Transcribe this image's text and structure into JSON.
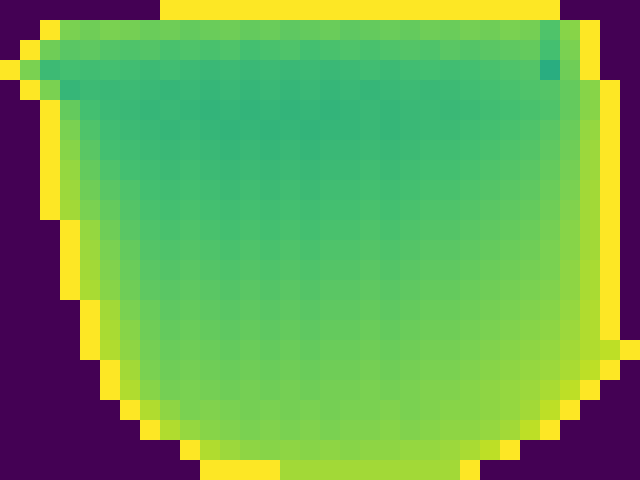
{
  "chart_data": {
    "type": "heatmap",
    "tick_labels": false,
    "color_range": [
      0,
      1
    ],
    "cells": [
      [
        0,
        0,
        0,
        0,
        0,
        0,
        0,
        0,
        1,
        1,
        1,
        1,
        1,
        1,
        1,
        1,
        1,
        1,
        1,
        1,
        1,
        1,
        1,
        1,
        1,
        1,
        1,
        1,
        0,
        0,
        0,
        0
      ],
      [
        0,
        0,
        1,
        0.8,
        0.78,
        0.8,
        0.79,
        0.77,
        0.78,
        0.76,
        0.77,
        0.78,
        0.76,
        0.77,
        0.75,
        0.76,
        0.77,
        0.75,
        0.76,
        0.77,
        0.76,
        0.78,
        0.77,
        0.79,
        0.78,
        0.8,
        0.79,
        0.72,
        0.82,
        1,
        0,
        0
      ],
      [
        0,
        1,
        0.78,
        0.74,
        0.75,
        0.73,
        0.72,
        0.73,
        0.71,
        0.72,
        0.71,
        0.72,
        0.7,
        0.71,
        0.72,
        0.7,
        0.71,
        0.72,
        0.71,
        0.72,
        0.73,
        0.72,
        0.74,
        0.73,
        0.74,
        0.75,
        0.76,
        0.7,
        0.8,
        1,
        0,
        0
      ],
      [
        1,
        0.8,
        0.68,
        0.7,
        0.69,
        0.7,
        0.69,
        0.68,
        0.69,
        0.68,
        0.67,
        0.68,
        0.67,
        0.68,
        0.67,
        0.68,
        0.67,
        0.68,
        0.69,
        0.68,
        0.69,
        0.7,
        0.69,
        0.7,
        0.71,
        0.72,
        0.73,
        0.62,
        0.78,
        1,
        0,
        0
      ],
      [
        0,
        1,
        0.8,
        0.66,
        0.68,
        0.67,
        0.68,
        0.67,
        0.66,
        0.67,
        0.66,
        0.67,
        0.66,
        0.67,
        0.66,
        0.67,
        0.66,
        0.67,
        0.66,
        0.67,
        0.68,
        0.67,
        0.68,
        0.69,
        0.7,
        0.71,
        0.72,
        0.73,
        0.76,
        0.82,
        1,
        0
      ],
      [
        0,
        0,
        1,
        0.76,
        0.7,
        0.68,
        0.67,
        0.66,
        0.67,
        0.66,
        0.65,
        0.66,
        0.65,
        0.66,
        0.65,
        0.66,
        0.65,
        0.66,
        0.67,
        0.66,
        0.67,
        0.68,
        0.67,
        0.68,
        0.69,
        0.7,
        0.71,
        0.72,
        0.76,
        0.82,
        1,
        0
      ],
      [
        0,
        0,
        1,
        0.8,
        0.72,
        0.69,
        0.68,
        0.67,
        0.66,
        0.67,
        0.66,
        0.65,
        0.66,
        0.65,
        0.66,
        0.65,
        0.66,
        0.66,
        0.67,
        0.66,
        0.67,
        0.68,
        0.68,
        0.69,
        0.7,
        0.71,
        0.72,
        0.74,
        0.77,
        0.84,
        1,
        0
      ],
      [
        0,
        0,
        1,
        0.82,
        0.74,
        0.7,
        0.69,
        0.68,
        0.67,
        0.68,
        0.67,
        0.66,
        0.67,
        0.66,
        0.67,
        0.66,
        0.67,
        0.67,
        0.68,
        0.67,
        0.68,
        0.69,
        0.69,
        0.7,
        0.71,
        0.72,
        0.73,
        0.75,
        0.78,
        0.85,
        1,
        0
      ],
      [
        0,
        0,
        1,
        0.84,
        0.76,
        0.72,
        0.7,
        0.69,
        0.68,
        0.69,
        0.68,
        0.67,
        0.68,
        0.67,
        0.68,
        0.67,
        0.68,
        0.68,
        0.69,
        0.68,
        0.69,
        0.7,
        0.7,
        0.71,
        0.72,
        0.73,
        0.74,
        0.76,
        0.79,
        0.85,
        1,
        0
      ],
      [
        0,
        0,
        1,
        0.85,
        0.78,
        0.74,
        0.72,
        0.7,
        0.69,
        0.7,
        0.69,
        0.68,
        0.69,
        0.68,
        0.69,
        0.68,
        0.69,
        0.69,
        0.7,
        0.69,
        0.7,
        0.71,
        0.71,
        0.72,
        0.73,
        0.74,
        0.75,
        0.77,
        0.8,
        0.86,
        1,
        0
      ],
      [
        0,
        0,
        1,
        0.86,
        0.8,
        0.76,
        0.73,
        0.71,
        0.7,
        0.71,
        0.7,
        0.69,
        0.7,
        0.69,
        0.7,
        0.69,
        0.7,
        0.7,
        0.71,
        0.7,
        0.71,
        0.72,
        0.72,
        0.73,
        0.74,
        0.75,
        0.76,
        0.78,
        0.81,
        0.86,
        1,
        0
      ],
      [
        0,
        0,
        0,
        1,
        0.84,
        0.78,
        0.74,
        0.72,
        0.71,
        0.72,
        0.71,
        0.7,
        0.71,
        0.7,
        0.71,
        0.7,
        0.71,
        0.71,
        0.72,
        0.71,
        0.72,
        0.73,
        0.73,
        0.74,
        0.75,
        0.76,
        0.77,
        0.79,
        0.82,
        0.86,
        1,
        0
      ],
      [
        0,
        0,
        0,
        1,
        0.85,
        0.8,
        0.76,
        0.73,
        0.72,
        0.73,
        0.72,
        0.71,
        0.72,
        0.71,
        0.72,
        0.71,
        0.72,
        0.72,
        0.73,
        0.72,
        0.73,
        0.74,
        0.74,
        0.75,
        0.76,
        0.77,
        0.78,
        0.8,
        0.82,
        0.86,
        1,
        0
      ],
      [
        0,
        0,
        0,
        1,
        0.86,
        0.81,
        0.77,
        0.74,
        0.73,
        0.74,
        0.73,
        0.72,
        0.73,
        0.72,
        0.73,
        0.72,
        0.73,
        0.73,
        0.74,
        0.73,
        0.74,
        0.75,
        0.75,
        0.76,
        0.77,
        0.78,
        0.79,
        0.8,
        0.83,
        0.87,
        1,
        0
      ],
      [
        0,
        0,
        0,
        1,
        0.87,
        0.82,
        0.78,
        0.75,
        0.74,
        0.75,
        0.74,
        0.73,
        0.74,
        0.73,
        0.74,
        0.73,
        0.74,
        0.74,
        0.75,
        0.74,
        0.75,
        0.76,
        0.76,
        0.77,
        0.78,
        0.79,
        0.8,
        0.81,
        0.83,
        0.87,
        1,
        0
      ],
      [
        0,
        0,
        0,
        0,
        1,
        0.86,
        0.8,
        0.77,
        0.75,
        0.76,
        0.75,
        0.74,
        0.75,
        0.74,
        0.75,
        0.74,
        0.75,
        0.75,
        0.76,
        0.75,
        0.76,
        0.77,
        0.77,
        0.78,
        0.79,
        0.8,
        0.81,
        0.82,
        0.84,
        0.88,
        1,
        0
      ],
      [
        0,
        0,
        0,
        0,
        1,
        0.87,
        0.82,
        0.78,
        0.76,
        0.77,
        0.76,
        0.75,
        0.76,
        0.75,
        0.76,
        0.75,
        0.76,
        0.76,
        0.77,
        0.76,
        0.77,
        0.78,
        0.78,
        0.79,
        0.8,
        0.81,
        0.82,
        0.83,
        0.85,
        0.88,
        1,
        0
      ],
      [
        0,
        0,
        0,
        0,
        1,
        0.88,
        0.83,
        0.79,
        0.77,
        0.78,
        0.77,
        0.76,
        0.77,
        0.76,
        0.77,
        0.76,
        0.77,
        0.77,
        0.78,
        0.77,
        0.78,
        0.79,
        0.79,
        0.8,
        0.81,
        0.82,
        0.83,
        0.84,
        0.86,
        0.88,
        0.9,
        1
      ],
      [
        0,
        0,
        0,
        0,
        0,
        1,
        0.86,
        0.8,
        0.78,
        0.79,
        0.78,
        0.77,
        0.78,
        0.77,
        0.78,
        0.77,
        0.78,
        0.78,
        0.79,
        0.78,
        0.79,
        0.8,
        0.8,
        0.81,
        0.82,
        0.83,
        0.84,
        0.85,
        0.87,
        0.9,
        1,
        0
      ],
      [
        0,
        0,
        0,
        0,
        0,
        1,
        0.88,
        0.82,
        0.79,
        0.8,
        0.79,
        0.78,
        0.79,
        0.78,
        0.79,
        0.78,
        0.79,
        0.79,
        0.8,
        0.79,
        0.8,
        0.81,
        0.81,
        0.82,
        0.83,
        0.84,
        0.85,
        0.87,
        0.9,
        1,
        0,
        0
      ],
      [
        0,
        0,
        0,
        0,
        0,
        0,
        1,
        0.88,
        0.83,
        0.8,
        0.81,
        0.8,
        0.79,
        0.8,
        0.79,
        0.8,
        0.79,
        0.8,
        0.8,
        0.81,
        0.8,
        0.81,
        0.82,
        0.82,
        0.83,
        0.84,
        0.86,
        0.9,
        1,
        0,
        0,
        0
      ],
      [
        0,
        0,
        0,
        0,
        0,
        0,
        0,
        1,
        0.88,
        0.84,
        0.82,
        0.81,
        0.8,
        0.81,
        0.8,
        0.81,
        0.8,
        0.81,
        0.81,
        0.82,
        0.81,
        0.82,
        0.83,
        0.83,
        0.84,
        0.86,
        0.9,
        1,
        0,
        0,
        0,
        0
      ],
      [
        0,
        0,
        0,
        0,
        0,
        0,
        0,
        0,
        0,
        1,
        0.88,
        0.85,
        0.83,
        0.82,
        0.83,
        0.82,
        0.83,
        0.82,
        0.83,
        0.83,
        0.84,
        0.84,
        0.85,
        0.87,
        0.9,
        1,
        0,
        0,
        0,
        0,
        0,
        0
      ],
      [
        0,
        0,
        0,
        0,
        0,
        0,
        0,
        0,
        0,
        0,
        1,
        1,
        1,
        1,
        0.86,
        0.86,
        0.86,
        0.86,
        0.86,
        0.86,
        0.86,
        0.86,
        0.86,
        1,
        0,
        0,
        0,
        0,
        0,
        0,
        0,
        0
      ]
    ]
  }
}
